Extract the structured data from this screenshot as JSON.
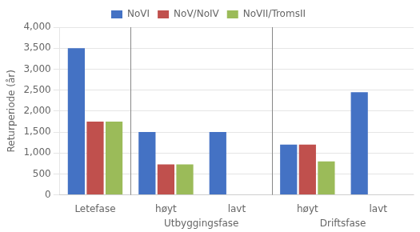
{
  "chart_data": {
    "type": "bar",
    "categories": [
      "Letefase",
      "høyt",
      "lavt",
      "høyt",
      "lavt"
    ],
    "category_groups": [
      null,
      "Utbyggingsfase",
      "Utbyggingsfase",
      "Driftsfase",
      "Driftsfase"
    ],
    "series": [
      {
        "name": "NoVI",
        "color": "#4472C4",
        "values": [
          3500,
          1500,
          1500,
          1200,
          2450
        ]
      },
      {
        "name": "NoV/NoIV",
        "color": "#C0504D",
        "values": [
          1750,
          725,
          0,
          1200,
          0
        ]
      },
      {
        "name": "NoVII/TromsII",
        "color": "#9BBB59",
        "values": [
          1750,
          725,
          0,
          800,
          0
        ]
      }
    ],
    "ylabel": "Returperiode (år)",
    "ylim": [
      0,
      4000
    ],
    "yticks": [
      0,
      500,
      1000,
      1500,
      2000,
      2500,
      3000,
      3500,
      4000
    ],
    "grid": true,
    "legend": "top"
  }
}
